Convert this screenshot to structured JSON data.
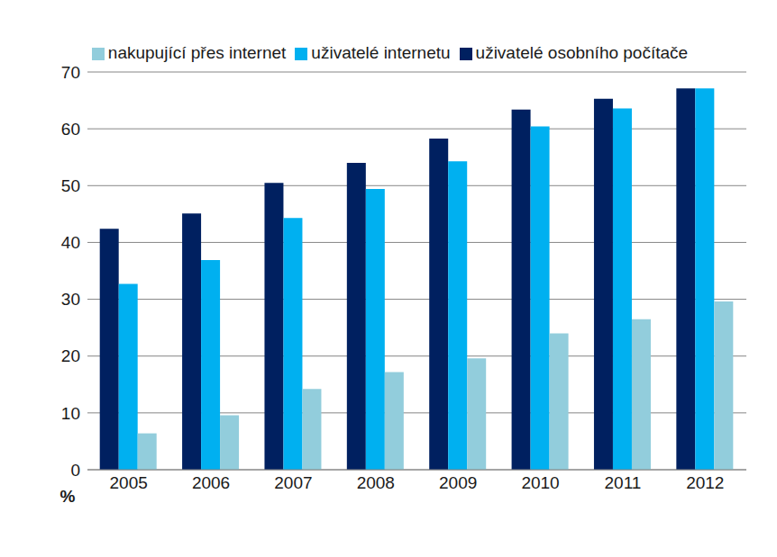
{
  "chart_data": {
    "type": "bar",
    "y_label": "%",
    "categories": [
      "2005",
      "2006",
      "2007",
      "2008",
      "2009",
      "2010",
      "2011",
      "2012"
    ],
    "series": [
      {
        "name": "uživatelé osobního počítače",
        "color": "#002060",
        "values": [
          42.4,
          45.1,
          50.5,
          54.0,
          58.3,
          63.4,
          65.3,
          67.1
        ]
      },
      {
        "name": "uživatelé internetu",
        "color": "#00B0F0",
        "values": [
          32.7,
          36.9,
          44.3,
          49.4,
          54.3,
          60.4,
          63.6,
          67.1
        ]
      },
      {
        "name": "nakupující přes internet",
        "color": "#92CDDC",
        "values": [
          6.4,
          9.6,
          14.2,
          17.2,
          19.6,
          24.0,
          26.5,
          29.6
        ]
      }
    ],
    "ylim": [
      0,
      70
    ],
    "yticks": [
      0,
      10,
      20,
      30,
      40,
      50,
      60,
      70
    ],
    "grid": true,
    "legend": "top"
  }
}
